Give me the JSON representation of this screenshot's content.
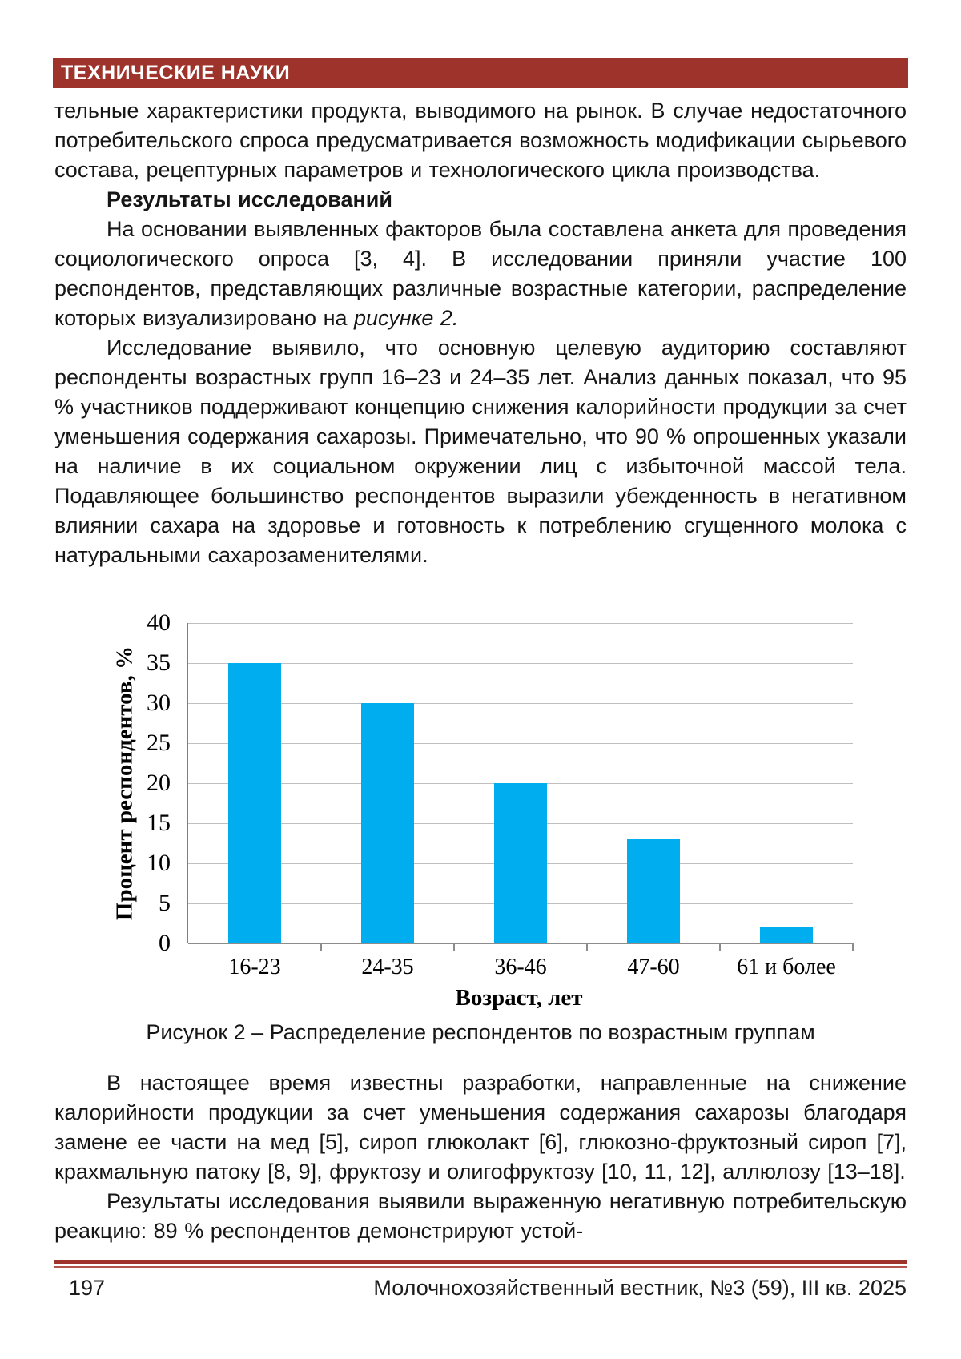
{
  "header": {
    "section_label": "ТЕХНИЧЕСКИЕ НАУКИ",
    "bar_color": "#9e332b"
  },
  "article": {
    "top_paragraphs": [
      {
        "style": "body",
        "indent": false,
        "text": "тельные характеристики продукта, выводимого на рынок. В случае недостаточного потребительского спроса предусматривается возможность модификации сырьевого состава, рецептурных параметров и технологического цикла производства."
      },
      {
        "style": "heading",
        "indent": true,
        "text": "Результаты исследований"
      },
      {
        "style": "body",
        "indent": true,
        "text": "На основании выявленных факторов была составлена анкета для проведения социологического опроса [3, 4]. В исследовании приняли участие 100 респондентов, представляющих различные возрастные категории, распределение которых визуализировано на ",
        "em": "рисунке 2."
      },
      {
        "style": "body",
        "indent": true,
        "text": "Исследование выявило, что основную целевую аудиторию составляют респонденты возрастных групп 16–23 и 24–35 лет. Анализ данных показал, что 95 % участников поддерживают концепцию снижения калорийности продукции за счет уменьшения содержания сахарозы. Примечательно, что 90 % опрошенных указали на наличие в их социальном окружении лиц с избыточной массой тела. Подавляющее большинство респондентов выразили убежденность в негативном влиянии сахара на здоровье и готовность к потреблению сгущенного молока с натуральными сахарозаменителями."
      }
    ],
    "bottom_paragraphs": [
      {
        "style": "body",
        "indent": true,
        "text": "В настоящее время известны разработки, направленные на снижение калорийности продукции за счет уменьшения содержания сахарозы благодаря замене ее части на мед [5], сироп глюколакт [6], глюкозно-фруктозный сироп [7], крахмальную патоку [8, 9], фруктозу и олигофруктозу [10, 11, 12], аллюлозу [13–18]."
      },
      {
        "style": "body",
        "indent": true,
        "text": "Результаты исследования выявили выраженную негативную потребительскую реакцию: 89 % респондентов демонстрируют устой-"
      }
    ]
  },
  "figure": {
    "caption": "Рисунок 2 – Распределение респондентов по возрастным группам"
  },
  "chart_data": {
    "type": "bar",
    "categories": [
      "16-23",
      "24-35",
      "36-46",
      "47-60",
      "61 и более"
    ],
    "values": [
      35,
      30,
      20,
      13,
      2
    ],
    "title": "",
    "xlabel": "Возраст, лет",
    "ylabel": "Процент респондентов, %",
    "ylim": [
      0,
      40
    ],
    "ytick_step": 5,
    "grid": true,
    "legend": "none",
    "bar_color": "#00aeef",
    "gridline_color": "#bfbfbf",
    "axis_color": "#7f7f7f"
  },
  "footer": {
    "page_number": "197",
    "journal_info": "Молочнохозяйственный вестник, №3 (59), III кв. 2025",
    "rule_color_dark": "#9e332b",
    "rule_color_light": "#b2544c"
  }
}
